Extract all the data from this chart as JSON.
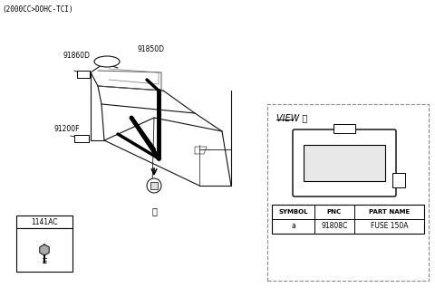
{
  "title": "(2000CC>DOHC-TCI)",
  "background_color": "#ffffff",
  "label_91860D": "91860D",
  "label_91850D": "91850D",
  "label_91200F": "91200F",
  "label_1141AC": "1141AC",
  "view_label": "VIEW Ⓐ",
  "table_headers": [
    "SYMBOL",
    "PNC",
    "PART NAME"
  ],
  "table_row": [
    "a",
    "91808C",
    "FUSE 150A"
  ],
  "circle_label": "Ⓐ",
  "arrow_up_label": "Ⓐ"
}
